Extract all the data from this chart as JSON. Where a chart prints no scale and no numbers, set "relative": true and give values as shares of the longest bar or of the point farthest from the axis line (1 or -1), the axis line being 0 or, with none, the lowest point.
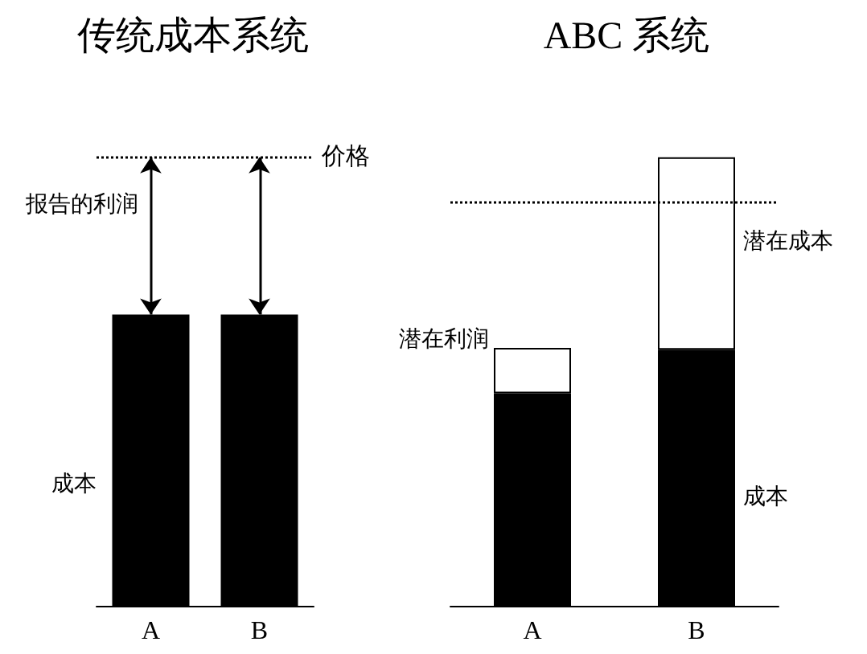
{
  "chart_data": [
    {
      "type": "bar",
      "title": "传统成本系统",
      "relative": true,
      "stacked": true,
      "categories": [
        "A",
        "B"
      ],
      "series": [
        {
          "color": "#000000",
          "values": [
            1,
            1
          ]
        }
      ],
      "ref_lines": [
        {
          "axis": "y",
          "value": 1.54,
          "label": "价格",
          "line_style": "dotted",
          "color": "#000000"
        }
      ],
      "annotations": [
        "报告的利润",
        "成本"
      ]
    },
    {
      "type": "bar",
      "title": "ABC 系统",
      "relative": true,
      "stacked": true,
      "categories": [
        "A",
        "B"
      ],
      "series": [
        {
          "color": "#000000",
          "values": [
            0.474,
            0.571
          ]
        },
        {
          "color": "#ffffff",
          "values": [
            0.101,
            0.429
          ]
        }
      ],
      "ref_lines": [
        {
          "axis": "y",
          "value": 0.9,
          "line_style": "dotted",
          "color": "#000000"
        }
      ],
      "annotations": [
        "潜在利润",
        "潜在成本",
        "成本"
      ]
    }
  ]
}
